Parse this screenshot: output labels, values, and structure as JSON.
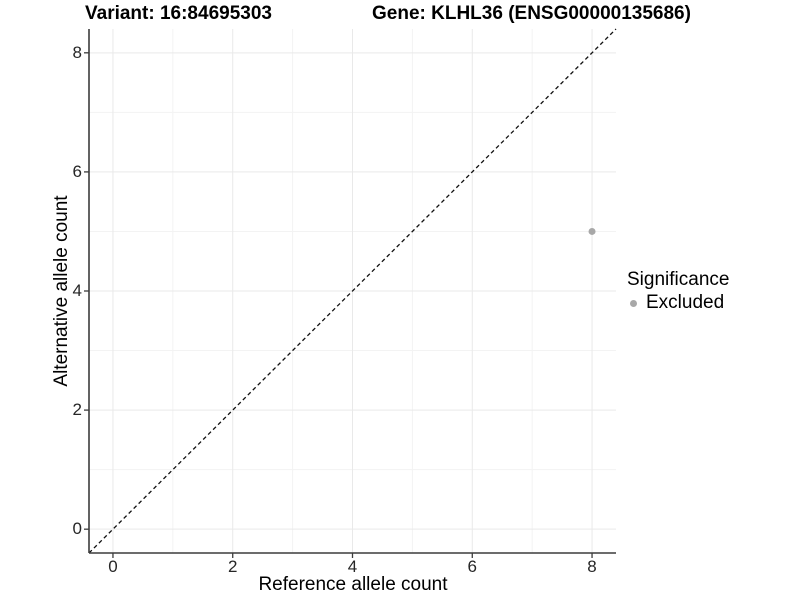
{
  "titles": {
    "variant": "Variant: 16:84695303",
    "gene": "Gene: KLHL36 (ENSG00000135686)"
  },
  "axes": {
    "x_label": "Reference allele count",
    "y_label": "Alternative allele count"
  },
  "legend": {
    "title": "Significance",
    "items": [
      {
        "label": "Excluded",
        "color": "#a8a8a8"
      }
    ]
  },
  "chart_data": {
    "type": "scatter",
    "title": "Variant: 16:84695303 | Gene: KLHL36 (ENSG00000135686)",
    "xlabel": "Reference allele count",
    "ylabel": "Alternative allele count",
    "xlim": [
      -0.4,
      8.4
    ],
    "ylim": [
      -0.4,
      8.4
    ],
    "x_ticks": [
      0,
      2,
      4,
      6,
      8
    ],
    "y_ticks": [
      0,
      2,
      4,
      6,
      8
    ],
    "x_minor_ticks": [
      1,
      3,
      5,
      7
    ],
    "y_minor_ticks": [
      1,
      3,
      5,
      7
    ],
    "grid": true,
    "legend_position": "right",
    "series": [
      {
        "name": "Excluded",
        "points": [
          {
            "x": 8,
            "y": 5
          }
        ],
        "color": "#a8a8a8"
      }
    ],
    "reference_line": {
      "kind": "identity",
      "slope": 1,
      "intercept": 0,
      "style": "dashed",
      "color": "#111111"
    },
    "colors": {
      "grid_major": "#e9e9e9",
      "grid_minor": "#f3f3f3",
      "axis": "#3c3c3c",
      "point": "#a8a8a8",
      "background": "#ffffff"
    }
  }
}
